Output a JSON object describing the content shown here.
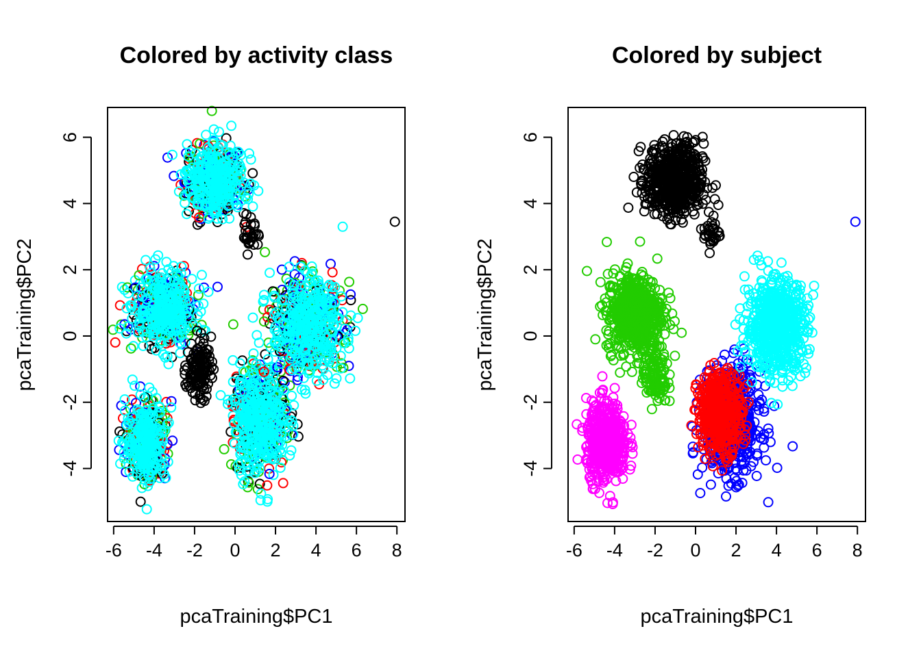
{
  "colors": {
    "black": "#000000",
    "red": "#ff0000",
    "green": "#22cc00",
    "blue": "#0000ff",
    "cyan": "#00ffff",
    "magenta": "#ff00ff"
  },
  "chart_data": [
    {
      "type": "scatter",
      "title": "Colored by activity class",
      "xlabel": "pcaTraining$PC1",
      "ylabel": "pcaTraining$PC2",
      "xlim": [
        -6.3,
        8.4
      ],
      "ylim": [
        -5.6,
        6.9
      ],
      "xticks": [
        -6,
        -4,
        -2,
        0,
        2,
        4,
        6,
        8
      ],
      "xtick_labels": [
        "-6",
        "-4",
        "-2",
        "0",
        "2",
        "4",
        "6",
        "8"
      ],
      "yticks": [
        -4,
        -2,
        0,
        2,
        4,
        6
      ],
      "ytick_labels": [
        "-4",
        "-2",
        "0",
        "2",
        "4",
        "6"
      ],
      "grid": false,
      "clusters": [
        {
          "cx": -1.0,
          "cy": 4.7,
          "sx": 0.7,
          "sy": 0.55,
          "n": 600,
          "colors": [
            "black",
            "red",
            "green",
            "blue",
            "cyan"
          ],
          "dominant": "cyan"
        },
        {
          "cx": -3.5,
          "cy": 0.8,
          "sx": 0.75,
          "sy": 0.55,
          "n": 600,
          "colors": [
            "black",
            "red",
            "green",
            "blue",
            "cyan"
          ],
          "dominant": "cyan"
        },
        {
          "cx": -4.4,
          "cy": -3.2,
          "sx": 0.5,
          "sy": 0.6,
          "n": 500,
          "colors": [
            "black",
            "red",
            "green",
            "blue",
            "cyan"
          ],
          "dominant": "cyan"
        },
        {
          "cx": 1.2,
          "cy": -2.5,
          "sx": 0.65,
          "sy": 0.8,
          "n": 700,
          "colors": [
            "black",
            "red",
            "green",
            "blue",
            "cyan"
          ],
          "dominant": "cyan"
        },
        {
          "cx": 3.6,
          "cy": 0.3,
          "sx": 0.9,
          "sy": 0.7,
          "n": 700,
          "colors": [
            "black",
            "red",
            "green",
            "blue",
            "cyan"
          ],
          "dominant": "cyan"
        },
        {
          "cx": -1.8,
          "cy": -1.0,
          "sx": 0.3,
          "sy": 0.45,
          "n": 120,
          "colors": [
            "black"
          ],
          "dominant": "black"
        },
        {
          "cx": 0.8,
          "cy": 3.1,
          "sx": 0.2,
          "sy": 0.25,
          "n": 30,
          "colors": [
            "black"
          ],
          "dominant": "black"
        }
      ],
      "outliers": [
        {
          "x": 7.9,
          "y": 3.45,
          "color": "black"
        }
      ]
    },
    {
      "type": "scatter",
      "title": "Colored by subject",
      "xlabel": "pcaTraining$PC1",
      "ylabel": "pcaTraining$PC2",
      "xlim": [
        -6.3,
        8.4
      ],
      "ylim": [
        -5.6,
        6.9
      ],
      "xticks": [
        -6,
        -4,
        -2,
        0,
        2,
        4,
        6,
        8
      ],
      "xtick_labels": [
        "-6",
        "-4",
        "-2",
        "0",
        "2",
        "4",
        "6",
        "8"
      ],
      "yticks": [
        -4,
        -2,
        0,
        2,
        4,
        6
      ],
      "ytick_labels": [
        "-4",
        "-2",
        "0",
        "2",
        "4",
        "6"
      ],
      "grid": false,
      "clusters": [
        {
          "cx": -1.0,
          "cy": 4.7,
          "sx": 0.7,
          "sy": 0.55,
          "n": 600,
          "colors": [
            "black"
          ],
          "dominant": "black"
        },
        {
          "cx": 0.8,
          "cy": 3.1,
          "sx": 0.2,
          "sy": 0.25,
          "n": 30,
          "colors": [
            "black"
          ],
          "dominant": "black"
        },
        {
          "cx": -3.0,
          "cy": 0.7,
          "sx": 0.7,
          "sy": 0.6,
          "n": 600,
          "colors": [
            "green"
          ],
          "dominant": "green"
        },
        {
          "cx": -2.0,
          "cy": -1.2,
          "sx": 0.3,
          "sy": 0.45,
          "n": 120,
          "colors": [
            "green"
          ],
          "dominant": "green"
        },
        {
          "cx": -4.4,
          "cy": -3.2,
          "sx": 0.5,
          "sy": 0.6,
          "n": 500,
          "colors": [
            "magenta"
          ],
          "dominant": "magenta"
        },
        {
          "cx": 1.8,
          "cy": -2.6,
          "sx": 0.7,
          "sy": 0.8,
          "n": 550,
          "colors": [
            "blue"
          ],
          "dominant": "blue"
        },
        {
          "cx": 1.2,
          "cy": -2.3,
          "sx": 0.55,
          "sy": 0.6,
          "n": 450,
          "colors": [
            "red"
          ],
          "dominant": "red"
        },
        {
          "cx": 4.0,
          "cy": 0.3,
          "sx": 0.75,
          "sy": 0.7,
          "n": 650,
          "colors": [
            "cyan"
          ],
          "dominant": "cyan"
        }
      ],
      "outliers": [
        {
          "x": 7.9,
          "y": 3.45,
          "color": "blue"
        }
      ]
    }
  ]
}
